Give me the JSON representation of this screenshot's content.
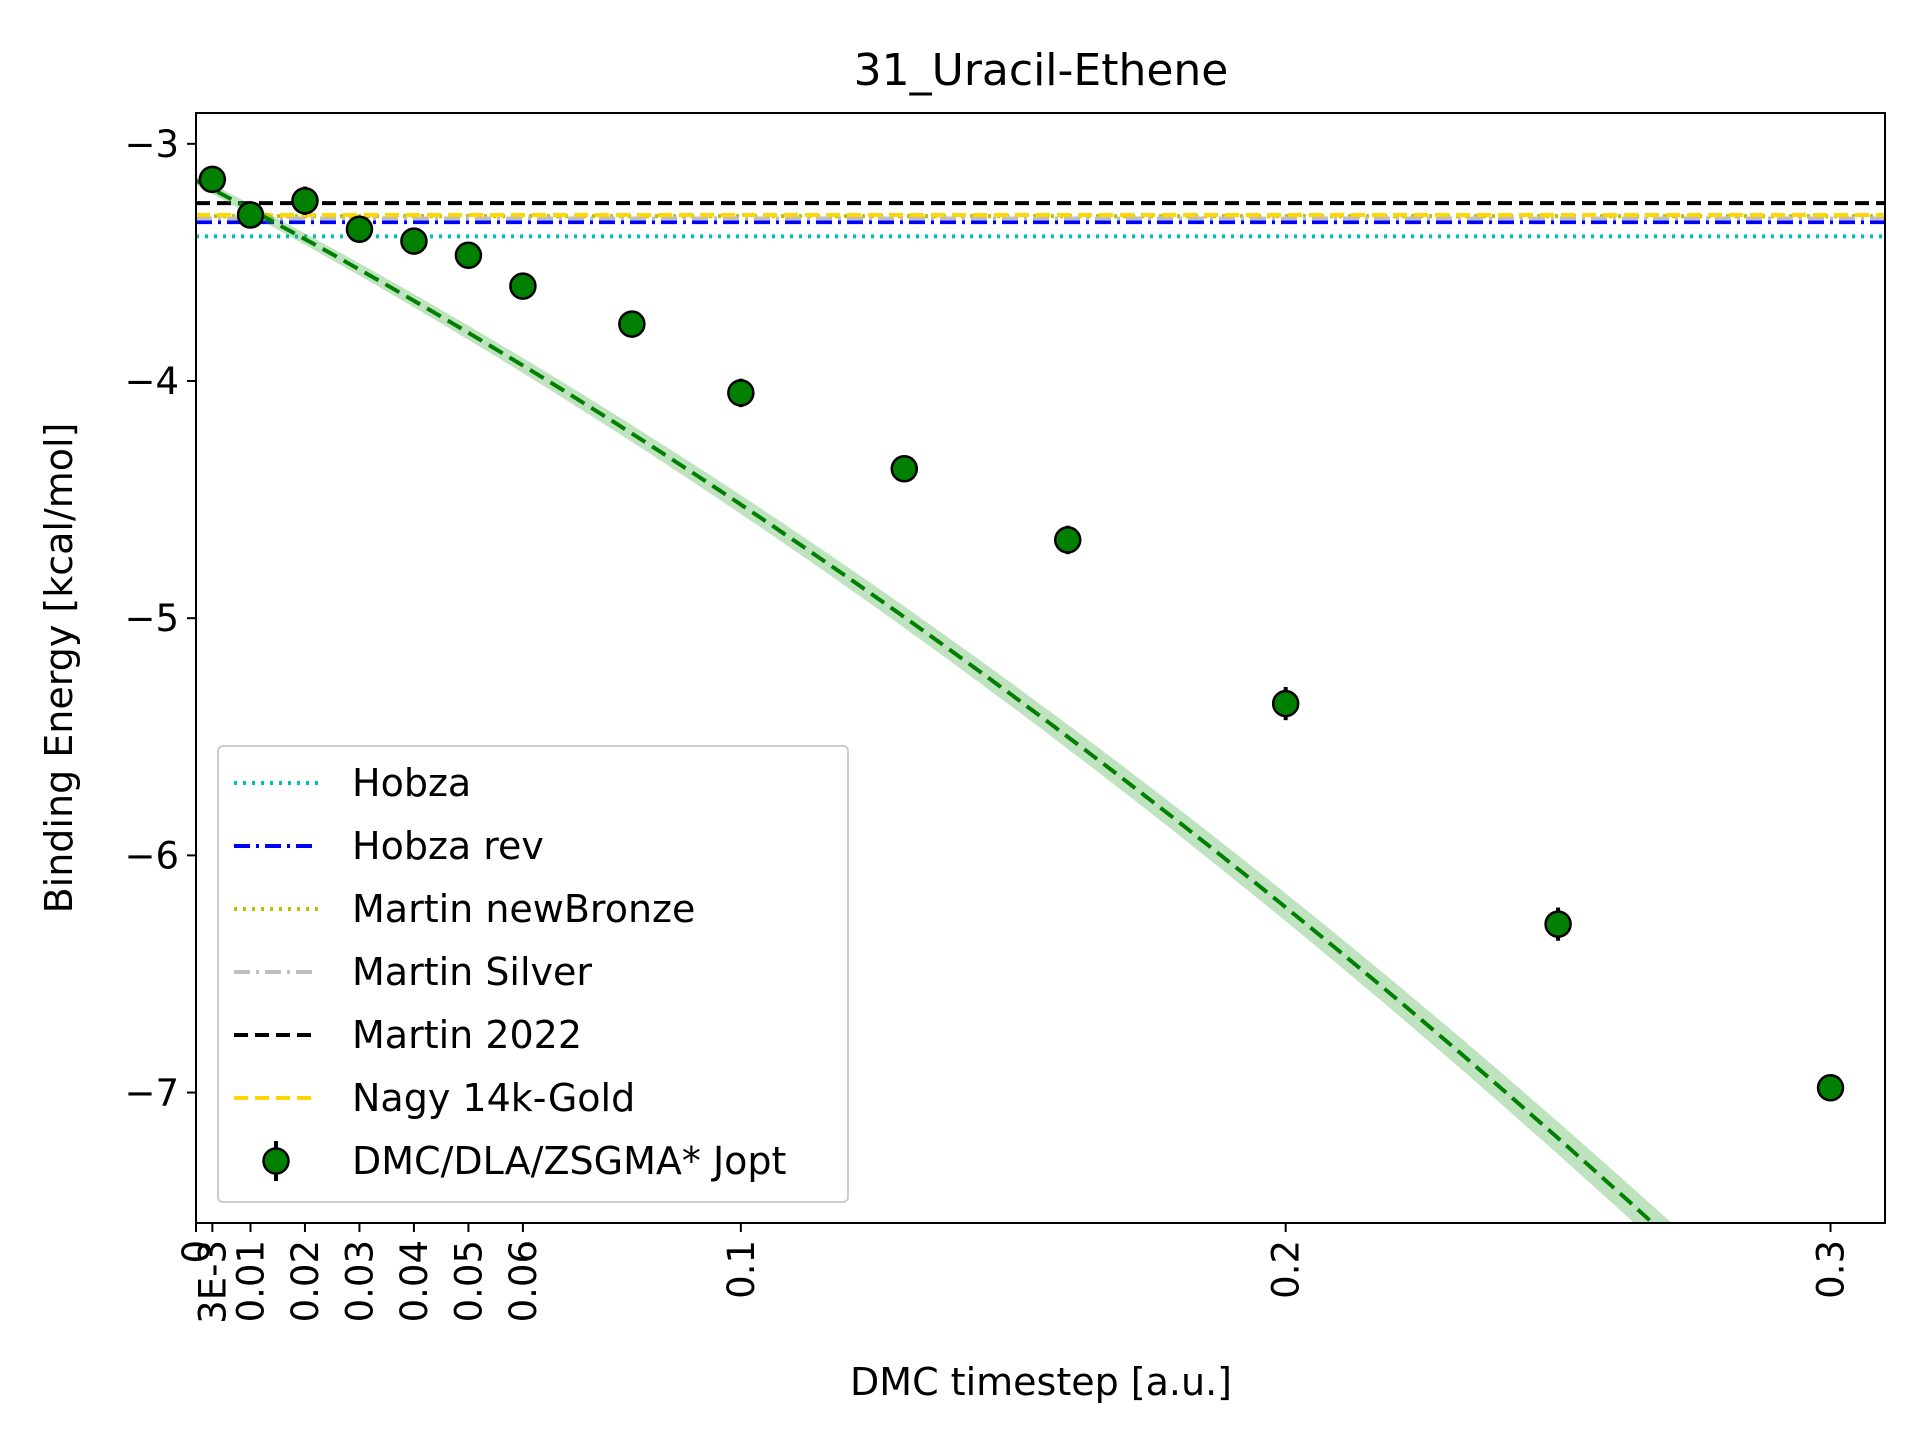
{
  "chart_data": {
    "type": "line",
    "title": "31_Uracil-Ethene",
    "xlabel": "DMC timestep [a.u.]",
    "ylabel": "Binding Energy [kcal/mol]",
    "xlim": [
      0,
      0.31
    ],
    "ylim": [
      -7.55,
      -2.87
    ],
    "x_ticks": [
      {
        "value": 0,
        "label": "0"
      },
      {
        "value": 0.003,
        "label": "3E-3"
      },
      {
        "value": 0.01,
        "label": "0.01"
      },
      {
        "value": 0.02,
        "label": "0.02"
      },
      {
        "value": 0.03,
        "label": "0.03"
      },
      {
        "value": 0.04,
        "label": "0.04"
      },
      {
        "value": 0.05,
        "label": "0.05"
      },
      {
        "value": 0.06,
        "label": "0.06"
      },
      {
        "value": 0.1,
        "label": "0.1"
      },
      {
        "value": 0.2,
        "label": "0.2"
      },
      {
        "value": 0.3,
        "label": "0.3"
      }
    ],
    "y_ticks": [
      {
        "value": -3,
        "label": "−3"
      },
      {
        "value": -4,
        "label": "−4"
      },
      {
        "value": -5,
        "label": "−5"
      },
      {
        "value": -6,
        "label": "−6"
      },
      {
        "value": -7,
        "label": "−7"
      }
    ],
    "grid": false,
    "legend_position": "lower-left",
    "reference_lines": [
      {
        "name": "Hobza",
        "value": -3.39,
        "color": "#00BFBF",
        "style": "dotted"
      },
      {
        "name": "Hobza rev",
        "value": -3.33,
        "color": "#0000FF",
        "style": "dashdot"
      },
      {
        "name": "Martin newBronze",
        "value": -3.305,
        "color": "#BFBF00",
        "style": "dotted"
      },
      {
        "name": "Martin Silver",
        "value": -3.315,
        "color": "#BFBFBF",
        "style": "dashdot"
      },
      {
        "name": "Martin 2022",
        "value": -3.25,
        "color": "#000000",
        "style": "dashed"
      },
      {
        "name": "Nagy 14k-Gold",
        "value": -3.3,
        "color": "#FFD700",
        "style": "dashed"
      }
    ],
    "series": [
      {
        "name": "DMC/DLA/ZSGMA* Jopt",
        "color": "#008000",
        "x": [
          0.003,
          0.01,
          0.02,
          0.03,
          0.04,
          0.05,
          0.06,
          0.08,
          0.1,
          0.13,
          0.16,
          0.2,
          0.25,
          0.3
        ],
        "y": [
          -3.15,
          -3.3,
          -3.24,
          -3.36,
          -3.41,
          -3.47,
          -3.6,
          -3.76,
          -4.05,
          -4.37,
          -4.67,
          -5.36,
          -6.29,
          -6.98
        ],
        "yerr": [
          0.05,
          0.04,
          0.06,
          0.04,
          0.04,
          0.04,
          0.05,
          0.05,
          0.06,
          0.05,
          0.06,
          0.07,
          0.07,
          0.05
        ]
      }
    ],
    "fit": {
      "color": "#008000",
      "band_color": "#2ca02c",
      "x_start": 0,
      "x_end": 0.31,
      "coefficients": [
        -3.155,
        -12.0,
        -16.6
      ],
      "band_halfwidth": [
        0.02,
        0.08
      ]
    }
  }
}
